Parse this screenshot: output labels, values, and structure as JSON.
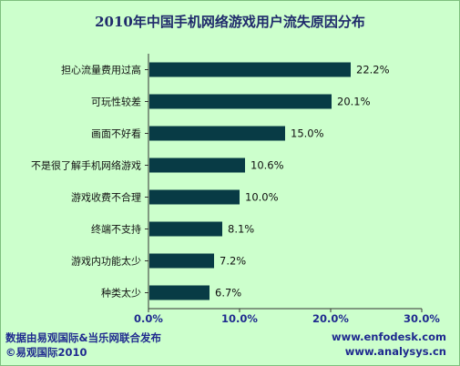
{
  "chart_data": {
    "type": "bar",
    "orientation": "horizontal",
    "title": "2010年中国手机网络游戏用户流失原因分布",
    "categories": [
      "担心流量费用过高",
      "可玩性较差",
      "画面不好看",
      "不是很了解手机网络游戏",
      "游戏收费不合理",
      "终端不支持",
      "游戏内功能太少",
      "种类太少"
    ],
    "values": [
      22.2,
      20.1,
      15.0,
      10.6,
      10.0,
      8.1,
      7.2,
      6.7
    ],
    "value_labels": [
      "22.2%",
      "20.1%",
      "15.0%",
      "10.6%",
      "10.0%",
      "8.1%",
      "7.2%",
      "6.7%"
    ],
    "xlim": [
      0,
      30
    ],
    "xticks": [
      0,
      10,
      20,
      30
    ],
    "xtick_labels": [
      "0.0%",
      "10.0%",
      "20.0%",
      "30.0%"
    ],
    "bar_color": "#083b45",
    "grid": false
  },
  "footer": {
    "source": "数据由易观国际&当乐网联合发布",
    "copyright": "©易观国际2010",
    "url1": "www.enfodesk.com",
    "url2": "www.analysys.cn"
  }
}
